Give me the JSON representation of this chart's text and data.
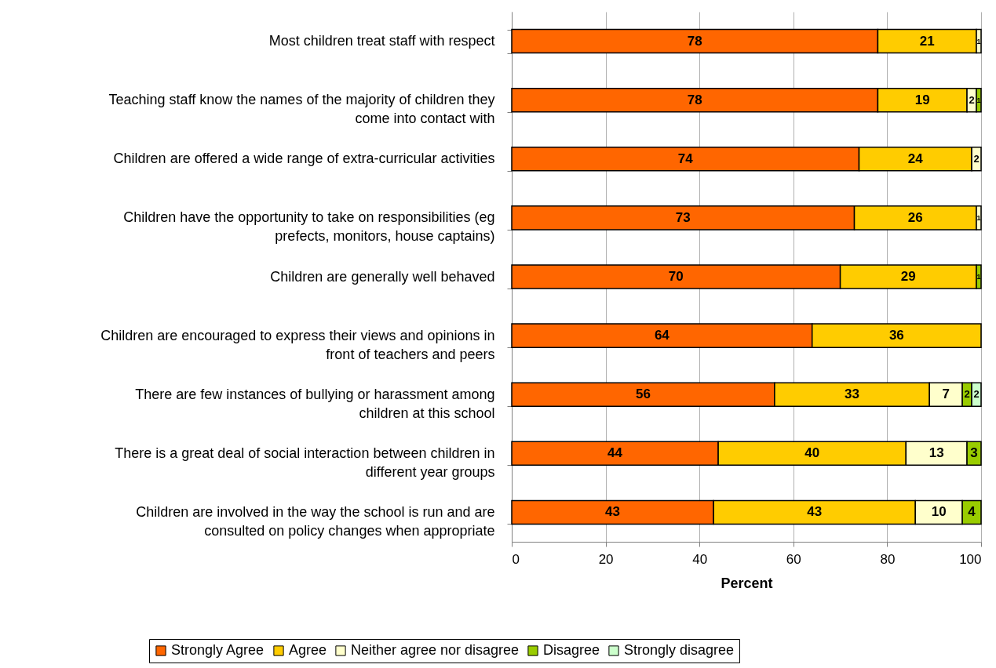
{
  "chart_data": {
    "type": "bar",
    "orientation": "horizontal",
    "stacked": true,
    "data_labels": true,
    "xlabel": "Percent",
    "xlim": [
      0,
      100
    ],
    "xticks": [
      0,
      20,
      40,
      60,
      80,
      100
    ],
    "grid": "x",
    "legend": "bottom",
    "categories": [
      "Most children treat staff with respect",
      "Teaching staff know the names of the majority of children they\ncome into contact with",
      "Children are offered a wide range of extra-curricular activities",
      "Children have the opportunity to take on responsibilities (eg\nprefects, monitors, house captains)",
      "Children are generally well behaved",
      "Children are encouraged to express their views and opinions in\nfront of teachers and peers",
      "There are few instances of bullying or harassment among\nchildren at this school",
      "There is a great deal of social interaction between children in\ndifferent year groups",
      "Children are involved in the way the school is run and are\nconsulted on policy changes when appropriate"
    ],
    "series": [
      {
        "name": "Strongly Agree",
        "color": "#ff6600",
        "values": [
          78,
          78,
          74,
          73,
          70,
          64,
          56,
          44,
          43
        ]
      },
      {
        "name": "Agree",
        "color": "#ffcc00",
        "values": [
          21,
          19,
          24,
          26,
          29,
          36,
          33,
          40,
          43
        ]
      },
      {
        "name": "Neither agree nor disagree",
        "color": "#ffffcc",
        "values": [
          1,
          2,
          2,
          1,
          null,
          null,
          7,
          13,
          10
        ]
      },
      {
        "name": "Disagree",
        "color": "#99cc00",
        "values": [
          null,
          1,
          null,
          null,
          1,
          null,
          2,
          3,
          4
        ]
      },
      {
        "name": "Strongly disagree",
        "color": "#ccffcc",
        "values": [
          null,
          null,
          null,
          null,
          null,
          null,
          2,
          null,
          null
        ]
      }
    ]
  }
}
